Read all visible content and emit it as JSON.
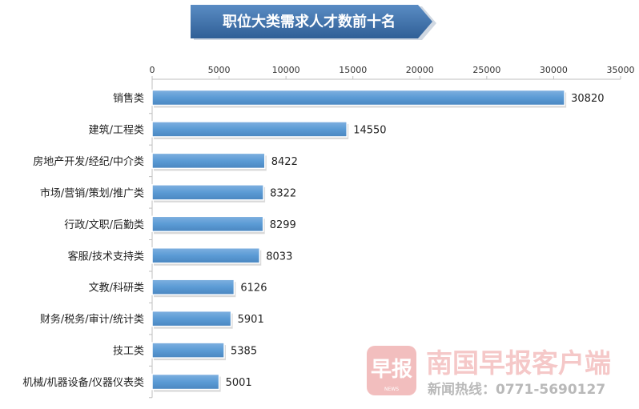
{
  "chart_data": {
    "type": "bar",
    "orientation": "horizontal",
    "title": "职位大类需求人才数前十名",
    "categories": [
      "销售类",
      "建筑/工程类",
      "房地产开发/经纪/中介类",
      "市场/营销/策划/推广类",
      "行政/文职/后勤类",
      "客服/技术支持类",
      "文教/科研类",
      "财务/税务/审计/统计类",
      "技工类",
      "机械/机器设备/仪器仪表类"
    ],
    "values": [
      30820,
      14550,
      8422,
      8322,
      8299,
      8033,
      6126,
      5901,
      5385,
      5001
    ],
    "xlim": [
      0,
      35000
    ],
    "xticks": [
      0,
      5000,
      10000,
      15000,
      20000,
      25000,
      30000,
      35000
    ],
    "axis_position": "top",
    "grid": false,
    "legend": "none",
    "bar_color": "#5b9bd5",
    "title_color": "#3c6fa8"
  },
  "watermark": {
    "logo_glyph": "早报",
    "logo_sub": "NEWS",
    "brand": "南国早报客户端",
    "hotline": "新闻热线：0771-5690127",
    "color": "#e06060"
  }
}
